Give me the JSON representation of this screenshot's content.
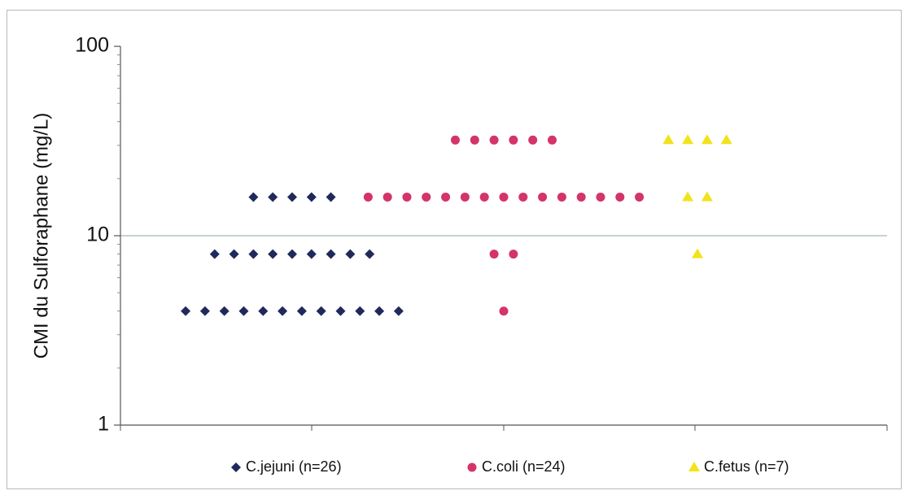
{
  "chart_data": {
    "type": "scatter",
    "ylabel": "CMI du Sulforaphane (mg/L)",
    "xlabel": "",
    "y_scale": "log",
    "ylim": [
      1,
      100
    ],
    "y_ticks": [
      1,
      10,
      100
    ],
    "y_tick_labels": [
      "1",
      "10",
      "100"
    ],
    "grid": "horizontal major gridlines",
    "legend_position": "bottom",
    "series": [
      {
        "name": "C.jejuni (n=26)",
        "marker": "diamond",
        "color": "#1f2a5a",
        "points": [
          {
            "mic": 4,
            "count": 12
          },
          {
            "mic": 8,
            "count": 9
          },
          {
            "mic": 16,
            "count": 5
          }
        ]
      },
      {
        "name": "C.coli (n=24)",
        "marker": "circle",
        "color": "#d4336b",
        "points": [
          {
            "mic": 4,
            "count": 1
          },
          {
            "mic": 8,
            "count": 2
          },
          {
            "mic": 16,
            "count": 15
          },
          {
            "mic": 32,
            "count": 6
          }
        ]
      },
      {
        "name": "C.fetus (n=7)",
        "marker": "triangle",
        "color": "#f2e31a",
        "points": [
          {
            "mic": 8,
            "count": 1
          },
          {
            "mic": 16,
            "count": 2
          },
          {
            "mic": 32,
            "count": 4
          }
        ]
      }
    ]
  }
}
